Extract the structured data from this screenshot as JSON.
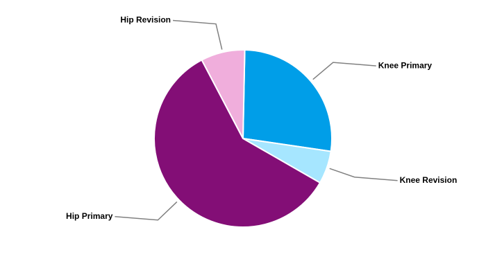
{
  "chart_data": {
    "type": "pie",
    "categories": [
      "Knee Primary",
      "Knee Revision",
      "Hip Primary",
      "Hip Revision"
    ],
    "values": [
      27,
      6,
      59,
      8
    ],
    "colors": [
      "#009ee8",
      "#a6e6ff",
      "#830e76",
      "#f0aedc"
    ]
  }
}
